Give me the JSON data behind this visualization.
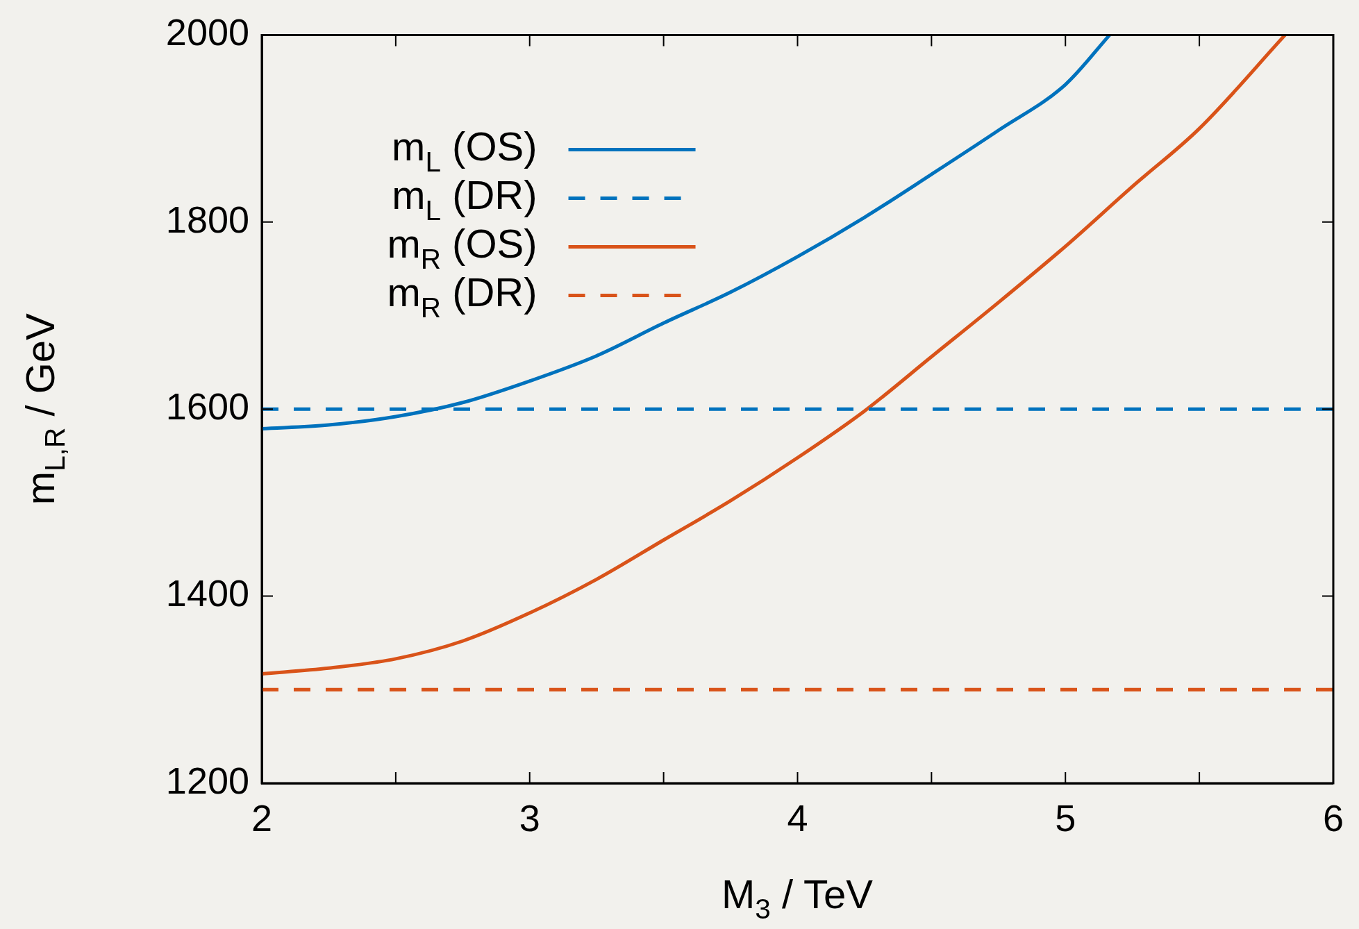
{
  "chart_data": {
    "type": "line",
    "xlabel": "M$_{3}$ / TeV",
    "ylabel": "m$_{L,R}$ / GeV",
    "xlim": [
      2,
      6
    ],
    "ylim": [
      1200,
      2000
    ],
    "xticks": [
      2,
      {
        "value": 2.5,
        "label": null
      },
      3,
      {
        "value": 3.5,
        "label": null
      },
      4,
      {
        "value": 4.5,
        "label": null
      },
      5,
      {
        "value": 5.5,
        "label": null
      },
      6
    ],
    "yticks": [
      1200,
      1400,
      1600,
      1800,
      2000
    ],
    "grid": false,
    "legend": "top left",
    "marker": "none",
    "series": [
      {
        "name": "m$_{L}$ (OS)",
        "color": "#0072bd",
        "line_style": "solid",
        "x": [
          2,
          2.25,
          2.5,
          2.75,
          3,
          3.25,
          3.5,
          3.75,
          4,
          4.25,
          4.5,
          4.75,
          5,
          5.165
        ],
        "values": [
          1579,
          1583,
          1592,
          1607,
          1630,
          1657,
          1692,
          1725,
          1763,
          1805,
          1851,
          1898,
          1947,
          2000
        ]
      },
      {
        "name": "m$_{L}$ (DR)",
        "color": "#0072bd",
        "line_style": "dashed",
        "x": [
          2,
          6
        ],
        "values": [
          1600,
          1600
        ]
      },
      {
        "name": "m$_{R}$ (OS)",
        "color": "#d95319",
        "line_style": "solid",
        "x": [
          2,
          2.25,
          2.5,
          2.75,
          3,
          3.25,
          3.5,
          3.75,
          4,
          4.25,
          4.5,
          4.75,
          5,
          5.25,
          5.5,
          5.82
        ],
        "values": [
          1317,
          1323,
          1333,
          1352,
          1382,
          1418,
          1460,
          1502,
          1548,
          1598,
          1656,
          1714,
          1774,
          1838,
          1900,
          2000
        ]
      },
      {
        "name": "m$_{R}$ (DR)",
        "color": "#d95319",
        "line_style": "dashed",
        "x": [
          2,
          6
        ],
        "values": [
          1300,
          1300
        ]
      }
    ]
  }
}
